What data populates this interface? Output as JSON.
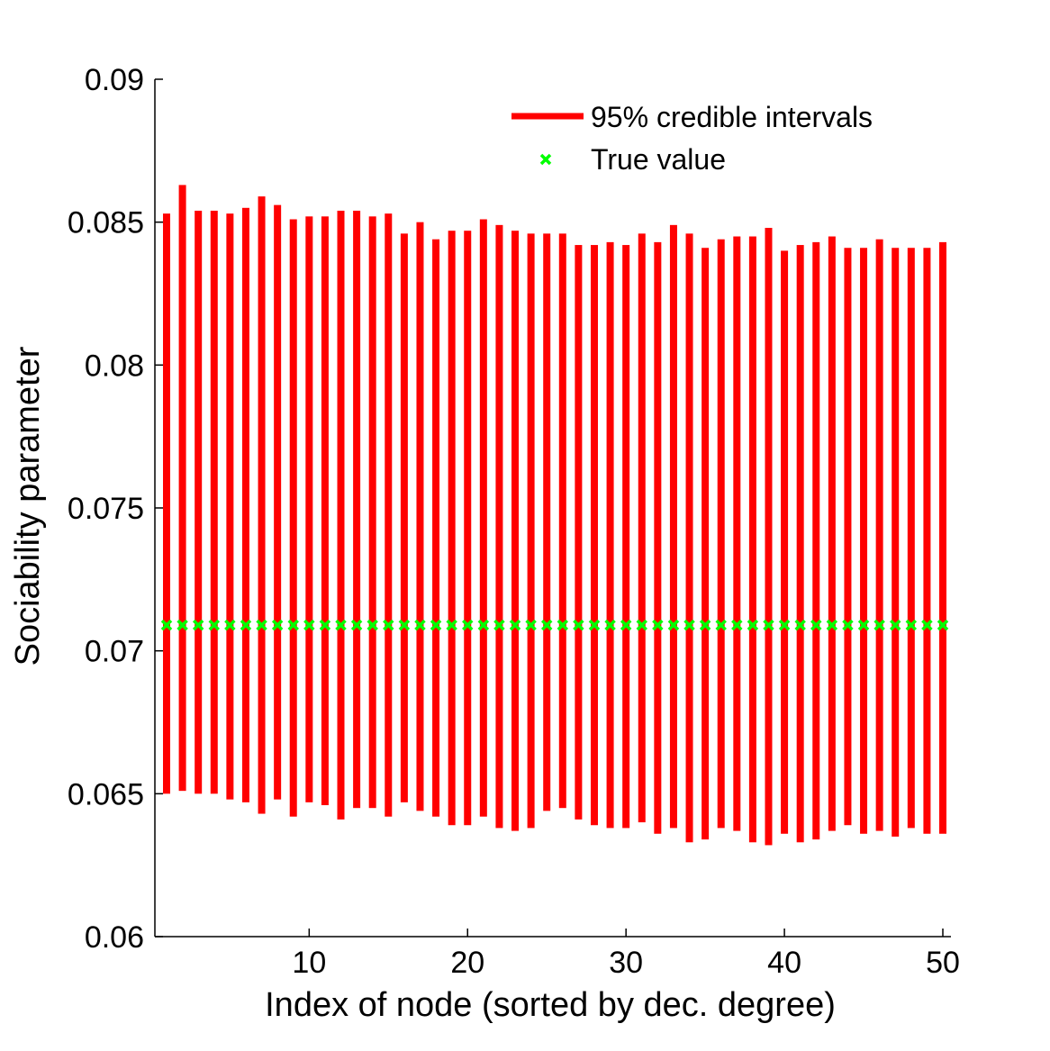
{
  "chart_data": {
    "type": "errorbar",
    "title": "",
    "xlabel": "Index of node (sorted by dec. degree)",
    "ylabel": "Sociability parameter",
    "xlim": [
      1,
      50
    ],
    "ylim": [
      0.06,
      0.09
    ],
    "xticks": [
      10,
      20,
      30,
      40,
      50
    ],
    "xtick_labels": [
      "10",
      "20",
      "30",
      "40",
      "50"
    ],
    "yticks": [
      0.06,
      0.065,
      0.07,
      0.075,
      0.08,
      0.085,
      0.09
    ],
    "ytick_labels": [
      "0.06",
      "0.065",
      "0.07",
      "0.075",
      "0.08",
      "0.085",
      "0.09"
    ],
    "grid": false,
    "legend_position": "top-right",
    "colors": {
      "interval": "#ff0000",
      "true_value": "#00ff00"
    },
    "series": [
      {
        "name": "95% credible intervals",
        "style": "vertical-interval",
        "x": [
          1,
          2,
          3,
          4,
          5,
          6,
          7,
          8,
          9,
          10,
          11,
          12,
          13,
          14,
          15,
          16,
          17,
          18,
          19,
          20,
          21,
          22,
          23,
          24,
          25,
          26,
          27,
          28,
          29,
          30,
          31,
          32,
          33,
          34,
          35,
          36,
          37,
          38,
          39,
          40,
          41,
          42,
          43,
          44,
          45,
          46,
          47,
          48,
          49,
          50
        ],
        "lower": [
          0.065,
          0.0651,
          0.065,
          0.065,
          0.0648,
          0.0647,
          0.0643,
          0.0648,
          0.0642,
          0.0647,
          0.0646,
          0.0641,
          0.0645,
          0.0645,
          0.0642,
          0.0647,
          0.0644,
          0.0642,
          0.0639,
          0.0639,
          0.0642,
          0.0638,
          0.0637,
          0.0638,
          0.0644,
          0.0645,
          0.0641,
          0.0639,
          0.0638,
          0.0638,
          0.064,
          0.0636,
          0.0638,
          0.0633,
          0.0634,
          0.0638,
          0.0637,
          0.0633,
          0.0632,
          0.0636,
          0.0633,
          0.0634,
          0.0637,
          0.0639,
          0.0636,
          0.0637,
          0.0635,
          0.0638,
          0.0636,
          0.0636
        ],
        "upper": [
          0.0853,
          0.0863,
          0.0854,
          0.0854,
          0.0853,
          0.0855,
          0.0859,
          0.0856,
          0.0851,
          0.0852,
          0.0852,
          0.0854,
          0.0854,
          0.0852,
          0.0853,
          0.0846,
          0.085,
          0.0844,
          0.0847,
          0.0847,
          0.0851,
          0.0849,
          0.0847,
          0.0846,
          0.0846,
          0.0846,
          0.0842,
          0.0842,
          0.0843,
          0.0842,
          0.0846,
          0.0843,
          0.0849,
          0.0846,
          0.0841,
          0.0844,
          0.0845,
          0.0845,
          0.0848,
          0.084,
          0.0842,
          0.0843,
          0.0845,
          0.0841,
          0.0841,
          0.0844,
          0.0841,
          0.0841,
          0.0841,
          0.0843
        ]
      },
      {
        "name": "True value",
        "style": "marker-x",
        "x": [
          1,
          2,
          3,
          4,
          5,
          6,
          7,
          8,
          9,
          10,
          11,
          12,
          13,
          14,
          15,
          16,
          17,
          18,
          19,
          20,
          21,
          22,
          23,
          24,
          25,
          26,
          27,
          28,
          29,
          30,
          31,
          32,
          33,
          34,
          35,
          36,
          37,
          38,
          39,
          40,
          41,
          42,
          43,
          44,
          45,
          46,
          47,
          48,
          49,
          50
        ],
        "y": [
          0.0709,
          0.0709,
          0.0709,
          0.0709,
          0.0709,
          0.0709,
          0.0709,
          0.0709,
          0.0709,
          0.0709,
          0.0709,
          0.0709,
          0.0709,
          0.0709,
          0.0709,
          0.0709,
          0.0709,
          0.0709,
          0.0709,
          0.0709,
          0.0709,
          0.0709,
          0.0709,
          0.0709,
          0.0709,
          0.0709,
          0.0709,
          0.0709,
          0.0709,
          0.0709,
          0.0709,
          0.0709,
          0.0709,
          0.0709,
          0.0709,
          0.0709,
          0.0709,
          0.0709,
          0.0709,
          0.0709,
          0.0709,
          0.0709,
          0.0709,
          0.0709,
          0.0709,
          0.0709,
          0.0709,
          0.0709,
          0.0709,
          0.0709
        ]
      }
    ]
  }
}
